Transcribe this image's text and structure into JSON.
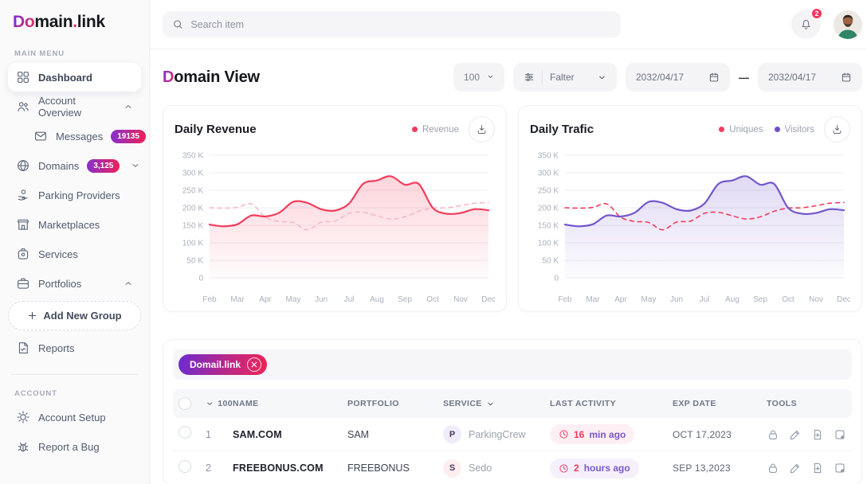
{
  "sidebar": {
    "logo_accent": "Do",
    "logo_mid": "main",
    "logo_dot": ".",
    "logo_rest": "link",
    "section_main": "MAIN MENU",
    "section_account": "ACCOUNT",
    "main_items": [
      {
        "id": "dashboard",
        "label": "Dashboard",
        "icon": "dashboard-icon",
        "active": true
      },
      {
        "id": "account-overview",
        "label": "Account Overview",
        "icon": "users-icon",
        "chevron": "up"
      },
      {
        "id": "messages",
        "label": "Messages",
        "icon": "mail-icon",
        "badge": "19135",
        "sub": true
      },
      {
        "id": "domains",
        "label": "Domains",
        "icon": "globe-icon",
        "badge": "3,125",
        "chevron": "down"
      },
      {
        "id": "parking-providers",
        "label": "Parking Providers",
        "icon": "hand-coin-icon"
      },
      {
        "id": "marketplaces",
        "label": "Marketplaces",
        "icon": "storefront-icon"
      },
      {
        "id": "services",
        "label": "Services",
        "icon": "box-icon"
      },
      {
        "id": "portfolios",
        "label": "Portfolios",
        "icon": "briefcase-icon",
        "chevron": "up"
      },
      {
        "id": "add-new-group",
        "label": "Add New Group",
        "icon": "plus-icon",
        "dashed": true
      },
      {
        "id": "reports",
        "label": "Reports",
        "icon": "report-icon"
      }
    ],
    "account_items": [
      {
        "id": "account-setup",
        "label": "Account Setup",
        "icon": "gear-icon"
      },
      {
        "id": "report-a-bug",
        "label": "Report a Bug",
        "icon": "bug-icon"
      }
    ]
  },
  "topbar": {
    "search_placeholder": "Search item",
    "notification_count": "2"
  },
  "page_header": {
    "title_accent": "D",
    "title_rest": "omain View",
    "page_size": "100",
    "filter_label": "Falter",
    "date_from": "2032/04/17",
    "date_separator": "—",
    "date_to": "2032/04/17"
  },
  "chart_data": [
    {
      "type": "area",
      "title": "Daily Revenue",
      "legend": [
        {
          "label": "Revenue",
          "color": "#f23d5c"
        }
      ],
      "legend_position": "top-right",
      "grid": true,
      "xlabel": "",
      "ylabel": "",
      "ylim": [
        0,
        350000
      ],
      "y_ticks": [
        "350 K",
        "300 K",
        "250 K",
        "200 K",
        "150 K",
        "100 K",
        "50 K",
        "0"
      ],
      "x_labels": [
        "Feb",
        "Mar",
        "Apr",
        "May",
        "Jun",
        "Jul",
        "Aug",
        "Sep",
        "Oct",
        "Nov",
        "Dec"
      ],
      "values_unit": "thousands",
      "series": [
        {
          "name": "Revenue",
          "style": "solid",
          "color": "#f23d5c",
          "fill": "#f23d5c",
          "values": [
            152,
            147,
            153,
            178,
            175,
            186,
            217,
            214,
            196,
            192,
            212,
            268,
            278,
            290,
            266,
            268,
            200,
            183,
            185,
            196,
            193
          ]
        },
        {
          "name": "",
          "style": "dashed",
          "color": "#f6b9ca",
          "fill": null,
          "values": [
            200,
            199,
            201,
            211,
            173,
            161,
            158,
            137,
            159,
            162,
            184,
            187,
            177,
            168,
            174,
            190,
            199,
            200,
            206,
            213,
            215
          ]
        }
      ]
    },
    {
      "type": "area",
      "title": "Daily Trafic",
      "legend": [
        {
          "label": "Uniques",
          "color": "#f23d5c"
        },
        {
          "label": "Visitors",
          "color": "#6f4fc9"
        }
      ],
      "legend_position": "top-right",
      "grid": true,
      "xlabel": "",
      "ylabel": "",
      "ylim": [
        0,
        350000
      ],
      "y_ticks": [
        "350 K",
        "300 K",
        "250 K",
        "200 K",
        "150 K",
        "100 K",
        "50 K",
        "0"
      ],
      "x_labels": [
        "Feb",
        "Mar",
        "Apr",
        "May",
        "Jun",
        "Jul",
        "Aug",
        "Sep",
        "Oct",
        "Nov",
        "Dec"
      ],
      "values_unit": "thousands",
      "series": [
        {
          "name": "Visitors",
          "style": "solid",
          "color": "#7355cc",
          "fill": "#7355cc",
          "values": [
            152,
            147,
            153,
            178,
            175,
            186,
            217,
            214,
            196,
            192,
            212,
            268,
            278,
            290,
            266,
            268,
            200,
            183,
            185,
            196,
            193
          ]
        },
        {
          "name": "Uniques",
          "style": "dashed",
          "color": "#f23d5c",
          "fill": null,
          "values": [
            200,
            199,
            201,
            211,
            173,
            161,
            158,
            137,
            159,
            162,
            184,
            187,
            177,
            168,
            174,
            190,
            199,
            200,
            206,
            213,
            215
          ]
        }
      ]
    }
  ],
  "table": {
    "filter_tag": "Domail.link",
    "page_size": "100",
    "columns": [
      "NAME",
      "PORTFOLIO",
      "SERVICE",
      "LAST ACTIVITY",
      "EXP DATE",
      "TOOLS"
    ],
    "tools": [
      "lock-icon",
      "pencil-icon",
      "file-plus-icon",
      "note-add-icon"
    ],
    "rows": [
      {
        "num": "1",
        "name": "SAM.COM",
        "portfolio": "SAM",
        "service_initial": "P",
        "service": "ParkingCrew",
        "service_bg": "#f1ecfa",
        "activity_value": "16",
        "activity_unit": "min ago",
        "activity_bg": "#fdeff3",
        "exp_date": "OCT 17,2023"
      },
      {
        "num": "2",
        "name": "FREEBONUS.COM",
        "portfolio": "FREEBONUS",
        "service_initial": "S",
        "service": "Sedo",
        "service_bg": "#fdeef0",
        "activity_value": "2",
        "activity_unit": "hours ago",
        "activity_bg": "#f5f0fb",
        "exp_date": "SEP 13,2023"
      }
    ]
  }
}
